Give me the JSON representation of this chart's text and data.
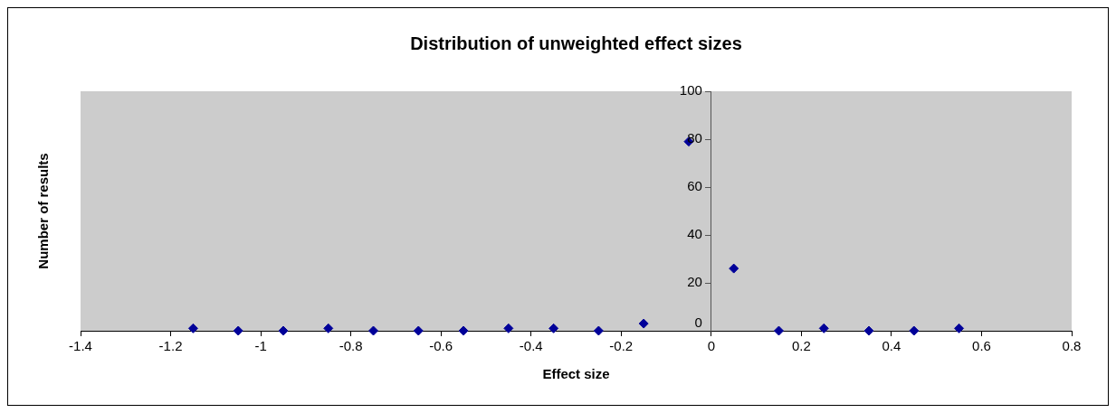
{
  "chart_data": {
    "type": "scatter",
    "title": "Distribution of unweighted effect sizes",
    "xlabel": "Effect size",
    "ylabel": "Number of results",
    "x": [
      -1.15,
      -1.05,
      -0.95,
      -0.85,
      -0.75,
      -0.65,
      -0.55,
      -0.45,
      -0.35,
      -0.25,
      -0.15,
      -0.05,
      0.05,
      0.15,
      0.25,
      0.35,
      0.45,
      0.55
    ],
    "series": [
      {
        "color": "#000099",
        "values": [
          1,
          0,
          0,
          1,
          0,
          0,
          0,
          1,
          1,
          0,
          3,
          79,
          26,
          0,
          1,
          0,
          0,
          1
        ]
      }
    ],
    "xlim": [
      -1.4,
      0.8
    ],
    "xticks": [
      -1.4,
      -1.2,
      -1,
      -0.8,
      -0.6,
      -0.4,
      -0.2,
      0,
      0.2,
      0.4,
      0.6,
      0.8
    ],
    "ylim": [
      0,
      100
    ],
    "yticks": [
      0,
      20,
      40,
      60,
      80,
      100
    ],
    "grid": false,
    "legend": false,
    "marker": "diamond"
  }
}
